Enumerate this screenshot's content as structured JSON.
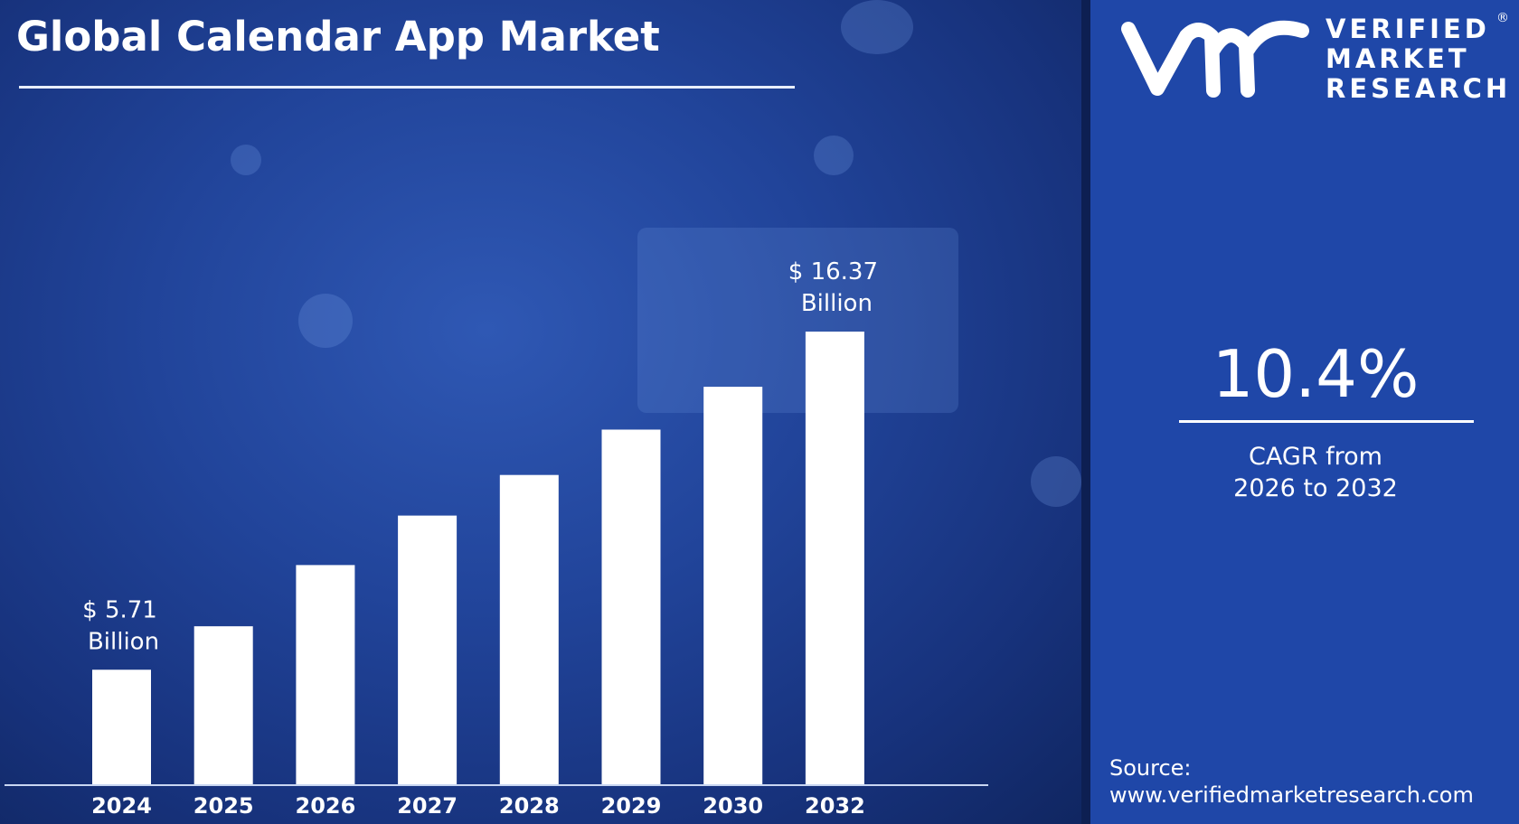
{
  "title": "Global Calendar App Market",
  "chart_data": {
    "type": "bar",
    "title": "Global Calendar App Market",
    "categories": [
      "2024",
      "2025",
      "2026",
      "2027",
      "2028",
      "2029",
      "2030",
      "2032"
    ],
    "values": [
      5.71,
      7.08,
      9.01,
      10.57,
      11.85,
      13.28,
      14.63,
      16.37
    ],
    "data_labels": [
      {
        "index": 0,
        "line1": "$ 5.71",
        "line2": "Billion"
      },
      {
        "index": 7,
        "line1": "$ 16.37",
        "line2": "Billion"
      }
    ],
    "xlabel": "",
    "ylabel": "",
    "ylim": [
      2.1,
      16.37
    ],
    "grid": false,
    "bar_color": "#ffffff"
  },
  "side": {
    "brand_lines": [
      "VERIFIED",
      "MARKET",
      "RESEARCH"
    ],
    "logo_mark": "vmr",
    "registered": "®",
    "cagr_value": "10.4%",
    "cagr_line1": "CAGR from",
    "cagr_line2": "2026 to 2032",
    "source_label": "Source:",
    "source_url": "www.verifiedmarketresearch.com",
    "panel_color": "#1f47a8"
  }
}
